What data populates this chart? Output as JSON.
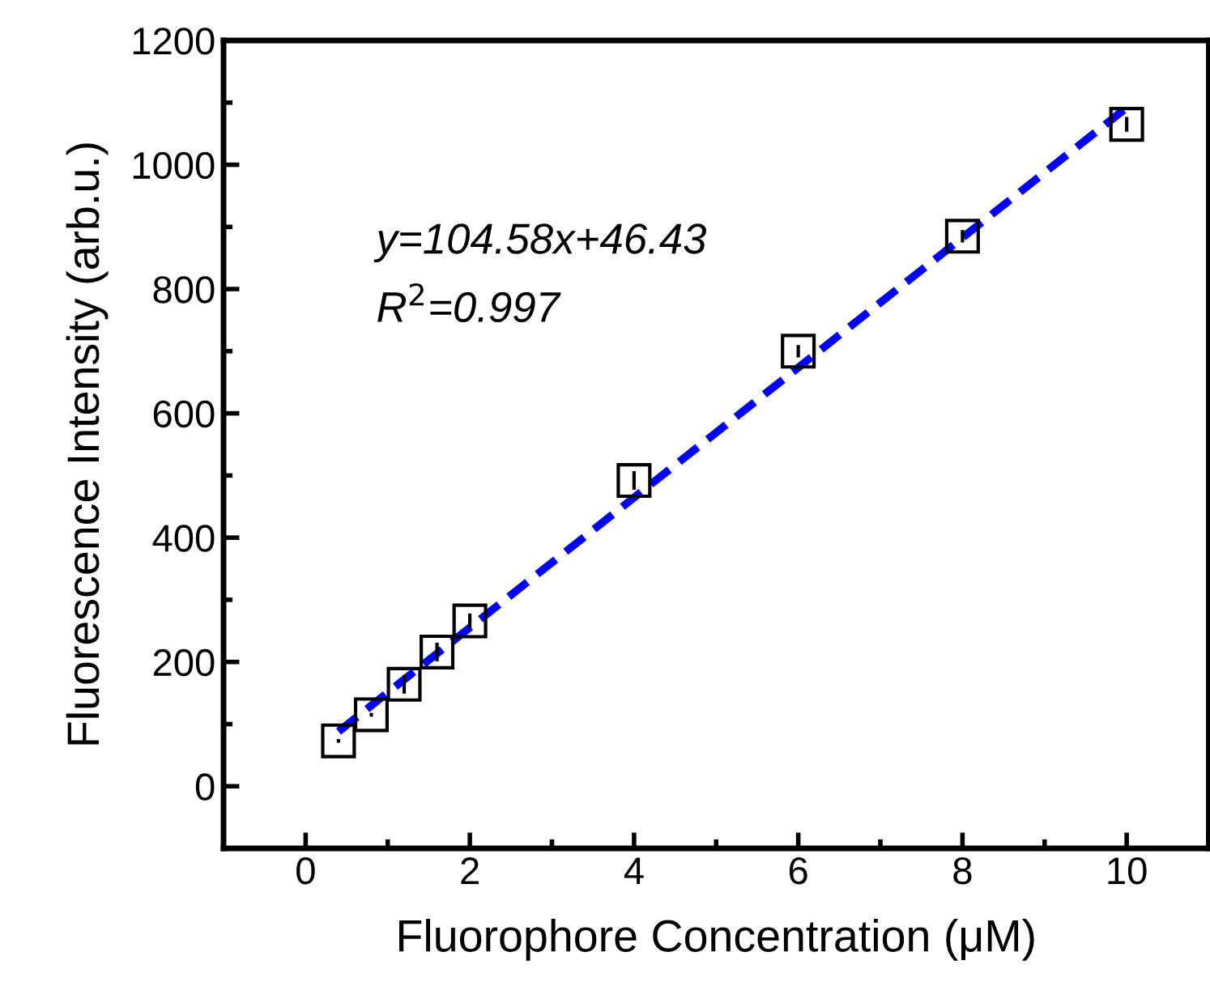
{
  "chart_data": {
    "type": "scatter",
    "xlabel": "Fluorophore Concentration (μM)",
    "ylabel": "Fluorescence Intensity (arb.u.)",
    "xlim": [
      -1,
      11
    ],
    "ylim": [
      -100,
      1200
    ],
    "xticks": [
      {
        "value": -1,
        "label": null
      },
      0,
      {
        "value": 1,
        "label": null
      },
      2,
      {
        "value": 3,
        "label": null
      },
      4,
      {
        "value": 5,
        "label": null
      },
      6,
      {
        "value": 7,
        "label": null
      },
      8,
      {
        "value": 9,
        "label": null
      },
      10,
      {
        "value": 11,
        "label": null
      }
    ],
    "yticks": [
      {
        "value": -100,
        "label": null
      },
      0,
      {
        "value": 100,
        "label": null
      },
      200,
      {
        "value": 300,
        "label": null
      },
      400,
      {
        "value": 500,
        "label": null
      },
      600,
      {
        "value": 700,
        "label": null
      },
      800,
      {
        "value": 900,
        "label": null
      },
      1000,
      {
        "value": 1100,
        "label": null
      },
      1200
    ],
    "grid": false,
    "legend": false,
    "series": [
      {
        "color": "#000000",
        "marker": "square",
        "x": [
          0.4,
          0.8,
          1.2,
          1.6,
          2,
          4,
          6,
          8,
          10
        ],
        "values": [
          73,
          115,
          164,
          216,
          266,
          492,
          700,
          885,
          1065
        ],
        "errors": [
          3,
          3,
          15,
          15,
          12,
          15,
          10,
          10,
          12
        ]
      },
      {
        "type": "line",
        "color": "#0000ff",
        "line_style": "dashed",
        "marker": "none",
        "x": [
          0.4,
          10
        ],
        "values": [
          88,
          1092
        ]
      }
    ],
    "annotations": [
      {
        "text": "y=104.58x+46.43"
      },
      {
        "text": "R$^{2}$=0.997"
      }
    ]
  }
}
